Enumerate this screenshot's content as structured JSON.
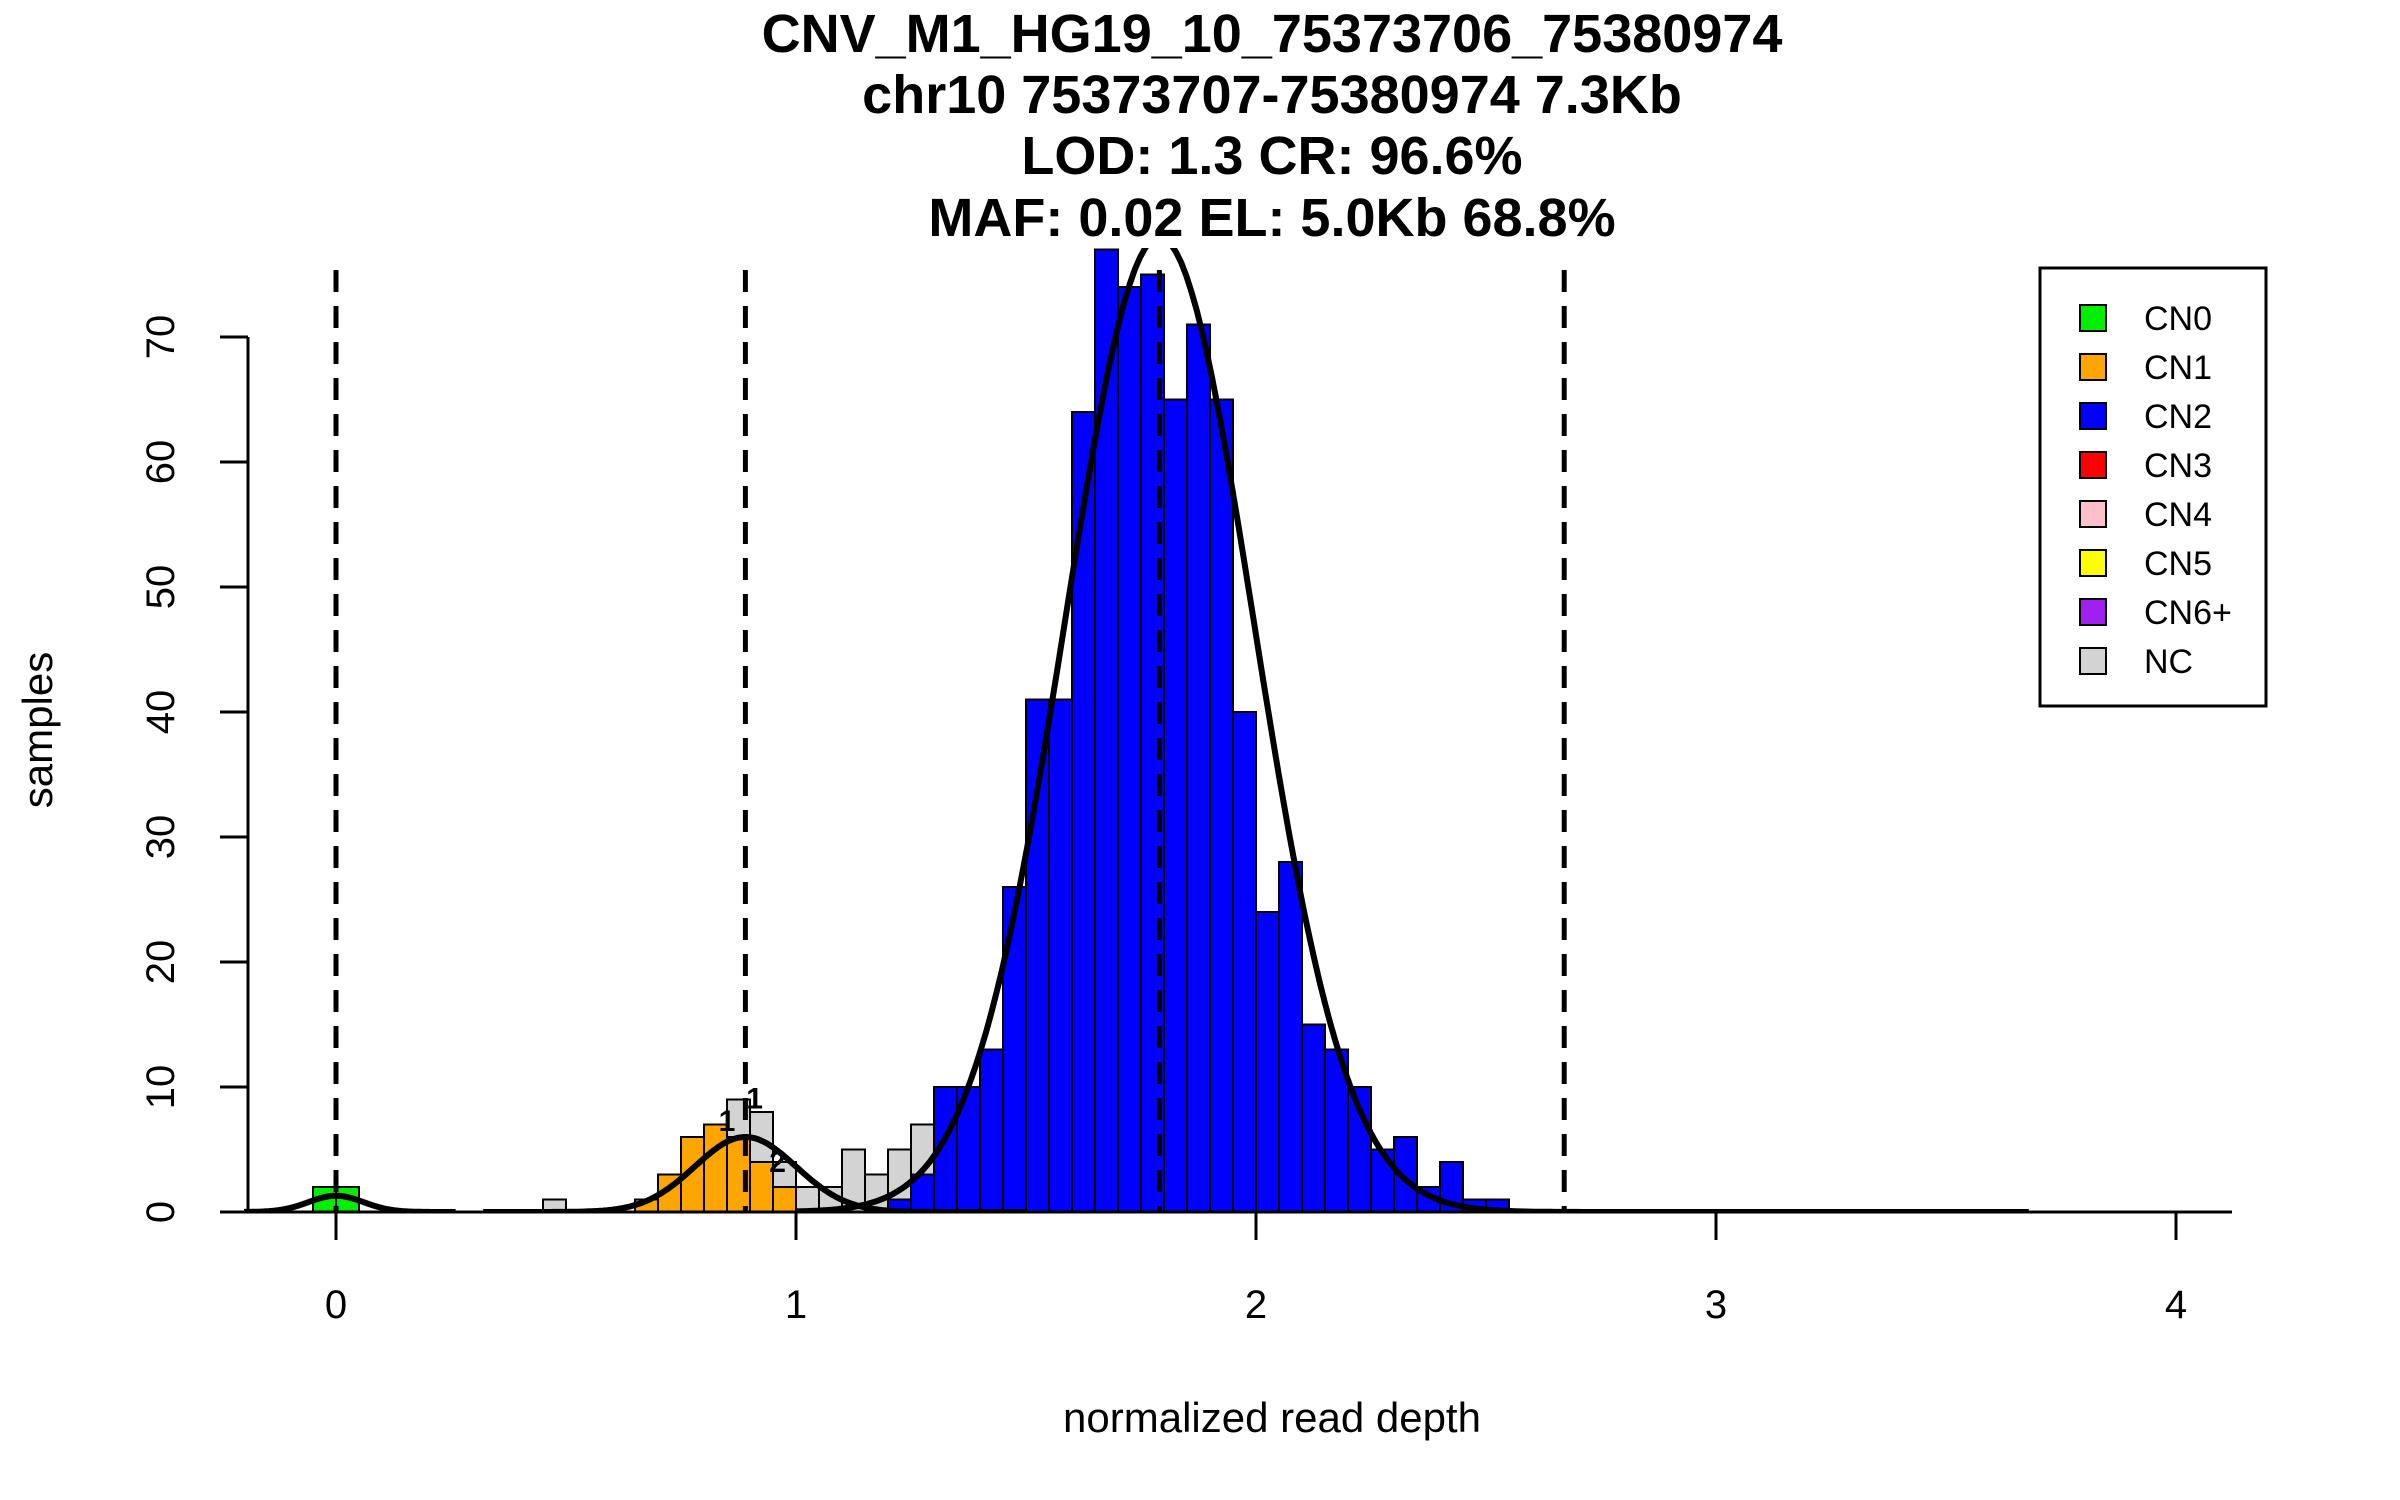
{
  "chart_data": {
    "type": "bar",
    "title_lines": [
      "CNV_M1_HG19_10_75373706_75380974",
      "chr10 75373707-75380974 7.3Kb",
      "LOD: 1.3 CR: 96.6%",
      "MAF: 0.02 EL: 5.0Kb 68.8%"
    ],
    "xlabel": "normalized read depth",
    "ylabel": "samples",
    "xlim": [
      -0.2,
      4.1
    ],
    "ylim": [
      0,
      76
    ],
    "x_ticks": [
      "0",
      "1",
      "2",
      "3",
      "4"
    ],
    "y_ticks": [
      "0",
      "10",
      "20",
      "30",
      "40",
      "50",
      "60",
      "70"
    ],
    "bin_width": 0.05,
    "legend_position": "top-right",
    "legend": [
      {
        "label": "CN0",
        "color": "#00ee00"
      },
      {
        "label": "CN1",
        "color": "#ffa500"
      },
      {
        "label": "CN2",
        "color": "#0000ff"
      },
      {
        "label": "CN3",
        "color": "#ff0000"
      },
      {
        "label": "CN4",
        "color": "#ffc0cb"
      },
      {
        "label": "CN5",
        "color": "#ffff00"
      },
      {
        "label": "CN6+",
        "color": "#a020f0"
      },
      {
        "label": "NC",
        "color": "#d3d3d3"
      }
    ],
    "series": [
      {
        "name": "CN0",
        "color": "#00ee00",
        "bins": [
          {
            "x": -0.025,
            "value": 2
          },
          {
            "x": 0.025,
            "value": 2
          }
        ]
      },
      {
        "name": "NC",
        "color": "#d3d3d3",
        "bins": [
          {
            "x": 0.475,
            "value": 1
          },
          {
            "x": 0.875,
            "value": 9
          },
          {
            "x": 0.925,
            "value": 8
          },
          {
            "x": 0.975,
            "value": 4
          },
          {
            "x": 1.025,
            "value": 2
          },
          {
            "x": 1.075,
            "value": 2
          },
          {
            "x": 1.125,
            "value": 5
          },
          {
            "x": 1.175,
            "value": 3
          },
          {
            "x": 1.225,
            "value": 5
          },
          {
            "x": 1.275,
            "value": 7
          }
        ]
      },
      {
        "name": "CN1",
        "color": "#ffa500",
        "bins": [
          {
            "x": 0.675,
            "value": 1
          },
          {
            "x": 0.725,
            "value": 3
          },
          {
            "x": 0.775,
            "value": 6
          },
          {
            "x": 0.825,
            "value": 7
          },
          {
            "x": 0.875,
            "value": 6
          },
          {
            "x": 0.925,
            "value": 4
          },
          {
            "x": 0.975,
            "value": 2
          }
        ]
      },
      {
        "name": "CN2",
        "color": "#0000ff",
        "bins": [
          {
            "x": 1.225,
            "value": 1
          },
          {
            "x": 1.275,
            "value": 3
          },
          {
            "x": 1.325,
            "value": 10
          },
          {
            "x": 1.375,
            "value": 10
          },
          {
            "x": 1.425,
            "value": 13
          },
          {
            "x": 1.475,
            "value": 26
          },
          {
            "x": 1.525,
            "value": 41
          },
          {
            "x": 1.575,
            "value": 41
          },
          {
            "x": 1.625,
            "value": 64
          },
          {
            "x": 1.675,
            "value": 77
          },
          {
            "x": 1.725,
            "value": 74
          },
          {
            "x": 1.775,
            "value": 75
          },
          {
            "x": 1.825,
            "value": 65
          },
          {
            "x": 1.875,
            "value": 71
          },
          {
            "x": 1.925,
            "value": 65
          },
          {
            "x": 1.975,
            "value": 40
          },
          {
            "x": 2.025,
            "value": 24
          },
          {
            "x": 2.075,
            "value": 28
          },
          {
            "x": 2.125,
            "value": 15
          },
          {
            "x": 2.175,
            "value": 13
          },
          {
            "x": 2.225,
            "value": 10
          },
          {
            "x": 2.275,
            "value": 5
          },
          {
            "x": 2.325,
            "value": 6
          },
          {
            "x": 2.375,
            "value": 2
          },
          {
            "x": 2.425,
            "value": 4
          },
          {
            "x": 2.475,
            "value": 1
          },
          {
            "x": 2.525,
            "value": 1
          }
        ]
      }
    ],
    "density_curves": [
      {
        "mean": 0.0,
        "sd": 0.06,
        "peak": 1.3,
        "xrange": [
          -0.2,
          0.26
        ]
      },
      {
        "mean": 0.89,
        "sd": 0.11,
        "peak": 6.0,
        "xrange": [
          0.32,
          1.5
        ]
      },
      {
        "mean": 1.79,
        "sd": 0.205,
        "peak": 78,
        "xrange": [
          1.0,
          3.68
        ]
      }
    ],
    "dashed_lines_x": [
      0.0,
      0.89,
      1.79,
      2.67
    ],
    "annotations": [
      {
        "text": "1",
        "x": 0.85,
        "y": 6.5
      },
      {
        "text": "1",
        "x": 0.91,
        "y": 8.3
      },
      {
        "text": "2",
        "x": 0.96,
        "y": 3.2
      }
    ]
  }
}
